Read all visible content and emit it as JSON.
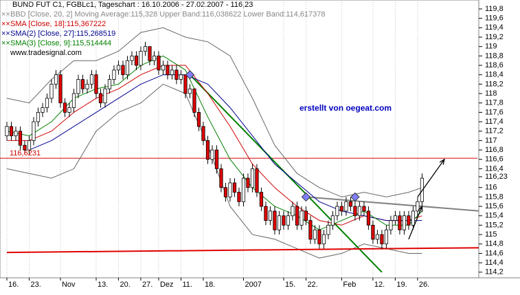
{
  "chart_data": {
    "type": "candlestick",
    "title": "BUND FUT C1, FGBLc1, Tageschart : 16.10.2006 - 27.02.2007 - 116,23",
    "legend": [
      "BBD [Close, 20, 2] Moving Average:115,328 Upper Band:116,038622 Lower Band:114,617378",
      "SMA [Close, 18]:115,367222",
      "SMA(2) [Close, 27]:115,268519",
      "SMA(3) [Close, 9]:115,514444"
    ],
    "legend_colors": [
      "#888888",
      "#d00000",
      "#000090",
      "#008000"
    ],
    "source": "www.tradesignal.com",
    "annotation": "erstellt von oegeat.com",
    "up_color": "#ffffff",
    "down_color": "#e00000",
    "xlim": [
      -1.54,
      105.4
    ],
    "ylim": [
      114.08,
      119.99
    ],
    "xticks": [
      {
        "value": 0,
        "label": "16."
      },
      {
        "value": 5,
        "label": "23."
      },
      {
        "value": 12,
        "label": "Nov"
      },
      {
        "value": 20,
        "label": "13."
      },
      {
        "value": 25,
        "label": "20."
      },
      {
        "value": 30,
        "label": "27."
      },
      {
        "value": 34,
        "label": "Dez"
      },
      {
        "value": 39,
        "label": "11."
      },
      {
        "value": 44,
        "label": "18."
      },
      {
        "value": 53,
        "label": "2007"
      },
      {
        "value": 62,
        "label": "15."
      },
      {
        "value": 67,
        "label": "22."
      },
      {
        "value": 75,
        "label": "Feb"
      },
      {
        "value": 82,
        "label": "12."
      },
      {
        "value": 87,
        "label": "19."
      },
      {
        "value": 92,
        "label": "26."
      }
    ],
    "yticks": [
      {
        "value": 114.2,
        "label": "114,2"
      },
      {
        "value": 114.4,
        "label": "114,4"
      },
      {
        "value": 114.6,
        "label": "114,6"
      },
      {
        "value": 114.8,
        "label": "114,8"
      },
      {
        "value": 115,
        "label": "115"
      },
      {
        "value": 115.2,
        "label": "115,2"
      },
      {
        "value": 115.4,
        "label": "115,4"
      },
      {
        "value": 115.6,
        "label": "115,6"
      },
      {
        "value": 115.8,
        "label": "115,8"
      },
      {
        "value": 116,
        "label": "116"
      },
      {
        "value": 116.4,
        "label": "116,4"
      },
      {
        "value": 116.6,
        "label": "116,6"
      },
      {
        "value": 116.8,
        "label": "116,8"
      },
      {
        "value": 117,
        "label": "117"
      },
      {
        "value": 117.2,
        "label": "117,2"
      },
      {
        "value": 117.4,
        "label": "117,4"
      },
      {
        "value": 117.6,
        "label": "117,6"
      },
      {
        "value": 117.8,
        "label": "117,8"
      },
      {
        "value": 118,
        "label": "118"
      },
      {
        "value": 118.2,
        "label": "118,2"
      },
      {
        "value": 118.4,
        "label": "118,4"
      },
      {
        "value": 118.6,
        "label": "118,6"
      },
      {
        "value": 118.8,
        "label": "118,8"
      },
      {
        "value": 119,
        "label": "119"
      },
      {
        "value": 119.2,
        "label": "119,2"
      },
      {
        "value": 119.4,
        "label": "119,4"
      },
      {
        "value": 119.6,
        "label": "119,6"
      },
      {
        "value": 119.8,
        "label": "119,8"
      }
    ],
    "last_price": {
      "value": 116.23,
      "label": "116,23"
    },
    "candles": [
      [
        117.1,
        117.4,
        117.0,
        117.3
      ],
      [
        117.3,
        117.4,
        117.0,
        117.1
      ],
      [
        117.1,
        117.3,
        117.0,
        117.2
      ],
      [
        117.2,
        117.3,
        116.8,
        116.9
      ],
      [
        116.9,
        117.0,
        116.7,
        116.8
      ],
      [
        116.8,
        117.1,
        116.7,
        117.0
      ],
      [
        117.0,
        117.5,
        116.9,
        117.4
      ],
      [
        117.4,
        117.7,
        117.3,
        117.6
      ],
      [
        117.6,
        117.8,
        117.5,
        117.7
      ],
      [
        117.7,
        118.0,
        117.6,
        117.9
      ],
      [
        117.9,
        118.3,
        117.8,
        118.2
      ],
      [
        118.2,
        118.5,
        118.1,
        118.4
      ],
      [
        118.4,
        118.5,
        117.7,
        117.8
      ],
      [
        117.8,
        117.9,
        117.5,
        117.6
      ],
      [
        117.6,
        117.8,
        117.5,
        117.7
      ],
      [
        117.7,
        118.1,
        117.6,
        118.0
      ],
      [
        118.0,
        118.4,
        117.9,
        118.3
      ],
      [
        118.3,
        118.4,
        118.0,
        118.1
      ],
      [
        118.1,
        118.3,
        118.0,
        118.2
      ],
      [
        118.2,
        118.5,
        118.1,
        118.4
      ],
      [
        118.4,
        118.5,
        117.9,
        118.0
      ],
      [
        118.0,
        118.1,
        117.7,
        117.8
      ],
      [
        117.8,
        118.2,
        117.7,
        118.1
      ],
      [
        118.1,
        118.4,
        118.0,
        118.3
      ],
      [
        118.3,
        118.6,
        118.2,
        118.5
      ],
      [
        118.5,
        118.7,
        118.4,
        118.6
      ],
      [
        118.6,
        118.7,
        118.3,
        118.4
      ],
      [
        118.4,
        118.8,
        118.3,
        118.7
      ],
      [
        118.7,
        118.9,
        118.6,
        118.8
      ],
      [
        118.8,
        118.9,
        118.5,
        118.6
      ],
      [
        118.6,
        119.0,
        118.5,
        118.9
      ],
      [
        118.9,
        119.1,
        118.8,
        119.0
      ],
      [
        119.0,
        119.0,
        118.6,
        118.7
      ],
      [
        118.7,
        118.9,
        118.6,
        118.8
      ],
      [
        118.8,
        118.9,
        118.4,
        118.5
      ],
      [
        118.5,
        118.7,
        118.4,
        118.6
      ],
      [
        118.6,
        118.7,
        118.3,
        118.4
      ],
      [
        118.4,
        118.6,
        118.3,
        118.5
      ],
      [
        118.5,
        118.6,
        118.2,
        118.3
      ],
      [
        118.3,
        118.5,
        118.2,
        118.4
      ],
      [
        118.4,
        118.4,
        117.9,
        118.0
      ],
      [
        118.0,
        118.2,
        117.9,
        118.1
      ],
      [
        118.1,
        118.1,
        117.5,
        117.6
      ],
      [
        117.6,
        117.7,
        117.2,
        117.3
      ],
      [
        117.3,
        117.4,
        116.9,
        117.0
      ],
      [
        117.0,
        117.1,
        116.5,
        116.6
      ],
      [
        116.6,
        116.9,
        116.5,
        116.8
      ],
      [
        116.8,
        116.9,
        116.3,
        116.4
      ],
      [
        116.4,
        116.5,
        115.9,
        116.0
      ],
      [
        116.0,
        116.1,
        115.7,
        115.8
      ],
      [
        115.8,
        116.2,
        115.7,
        116.1
      ],
      [
        116.1,
        116.2,
        115.8,
        115.9
      ],
      [
        115.9,
        116.0,
        115.6,
        115.7
      ],
      [
        115.7,
        116.3,
        115.6,
        116.2
      ],
      [
        116.2,
        116.3,
        115.9,
        116.0
      ],
      [
        116.0,
        116.5,
        115.9,
        116.4
      ],
      [
        116.4,
        116.5,
        115.8,
        115.9
      ],
      [
        115.9,
        116.0,
        115.5,
        115.6
      ],
      [
        115.6,
        115.7,
        115.2,
        115.3
      ],
      [
        115.3,
        115.6,
        115.2,
        115.5
      ],
      [
        115.5,
        115.6,
        115.0,
        115.1
      ],
      [
        115.1,
        115.5,
        115.0,
        115.4
      ],
      [
        115.4,
        115.5,
        115.1,
        115.2
      ],
      [
        115.2,
        115.5,
        115.1,
        115.4
      ],
      [
        115.4,
        115.7,
        115.3,
        115.6
      ],
      [
        115.6,
        115.7,
        115.1,
        115.2
      ],
      [
        115.2,
        115.6,
        115.1,
        115.5
      ],
      [
        115.5,
        115.6,
        115.2,
        115.3
      ],
      [
        115.3,
        115.4,
        114.8,
        114.9
      ],
      [
        114.9,
        115.2,
        114.8,
        115.1
      ],
      [
        115.1,
        115.2,
        114.7,
        114.8
      ],
      [
        114.8,
        115.1,
        114.7,
        115.0
      ],
      [
        115.0,
        115.3,
        114.9,
        115.2
      ],
      [
        115.2,
        115.5,
        115.1,
        115.4
      ],
      [
        115.4,
        115.7,
        115.3,
        115.6
      ],
      [
        115.6,
        115.7,
        115.4,
        115.5
      ],
      [
        115.5,
        115.8,
        115.4,
        115.7
      ],
      [
        115.7,
        115.8,
        115.5,
        115.6
      ],
      [
        115.6,
        115.7,
        115.3,
        115.4
      ],
      [
        115.4,
        115.7,
        115.3,
        115.6
      ],
      [
        115.6,
        115.7,
        115.4,
        115.5
      ],
      [
        115.5,
        115.6,
        115.1,
        115.2
      ],
      [
        115.2,
        115.3,
        114.8,
        114.9
      ],
      [
        114.9,
        115.1,
        114.8,
        115.0
      ],
      [
        115.0,
        115.1,
        114.7,
        114.8
      ],
      [
        114.8,
        115.2,
        114.7,
        115.1
      ],
      [
        115.1,
        115.4,
        115.0,
        115.3
      ],
      [
        115.3,
        115.5,
        115.2,
        115.4
      ],
      [
        115.4,
        115.5,
        115.0,
        115.1
      ],
      [
        115.1,
        115.5,
        115.0,
        115.4
      ],
      [
        115.4,
        115.5,
        115.1,
        115.2
      ],
      [
        115.2,
        115.6,
        115.1,
        115.5
      ],
      [
        115.5,
        115.8,
        115.4,
        115.7
      ],
      [
        115.7,
        116.3,
        115.6,
        116.2
      ]
    ],
    "bands": {
      "color": "#666666",
      "x": [
        0,
        5,
        10,
        15,
        20,
        25,
        30,
        35,
        40,
        45,
        50,
        55,
        60,
        65,
        70,
        75,
        80,
        85,
        90,
        93
      ],
      "upper": [
        117.9,
        117.8,
        118.3,
        118.7,
        118.7,
        118.9,
        119.3,
        119.4,
        119.2,
        119.1,
        118.8,
        117.9,
        116.9,
        116.3,
        116.0,
        115.8,
        115.9,
        115.8,
        115.9,
        116.0
      ],
      "lower": [
        116.4,
        116.3,
        116.2,
        116.4,
        117.2,
        117.6,
        117.8,
        118.2,
        118.0,
        116.9,
        115.6,
        115.0,
        114.9,
        114.7,
        114.5,
        114.6,
        114.8,
        114.7,
        114.6,
        114.6
      ]
    },
    "series": [
      {
        "color": "#d00000",
        "x": [
          0,
          5,
          10,
          15,
          20,
          25,
          30,
          35,
          40,
          45,
          50,
          55,
          60,
          65,
          70,
          75,
          80,
          85,
          90,
          93
        ],
        "values": [
          117.0,
          117.0,
          117.2,
          117.6,
          117.9,
          118.1,
          118.4,
          118.6,
          118.6,
          118.0,
          117.3,
          116.5,
          116.0,
          115.6,
          115.3,
          115.2,
          115.4,
          115.3,
          115.3,
          115.4
        ]
      },
      {
        "color": "#000090",
        "x": [
          5,
          10,
          15,
          20,
          25,
          30,
          35,
          40,
          45,
          50,
          55,
          60,
          65,
          70,
          75,
          80,
          85,
          90,
          93
        ],
        "values": [
          116.8,
          117.0,
          117.3,
          117.6,
          117.9,
          118.2,
          118.4,
          118.4,
          118.2,
          117.7,
          117.1,
          116.5,
          116.1,
          115.7,
          115.5,
          115.4,
          115.3,
          115.3,
          115.3
        ]
      },
      {
        "color": "#008000",
        "x": [
          0,
          5,
          10,
          15,
          20,
          25,
          30,
          35,
          40,
          45,
          50,
          55,
          60,
          65,
          70,
          75,
          80,
          85,
          90,
          93
        ],
        "values": [
          117.2,
          117.1,
          117.4,
          117.9,
          118.1,
          118.2,
          118.6,
          118.8,
          118.5,
          117.5,
          116.6,
          116.0,
          115.6,
          115.4,
          115.1,
          115.3,
          115.5,
          115.2,
          115.2,
          115.5
        ]
      }
    ],
    "level": {
      "value": 116.6231,
      "label": "116,6231",
      "color": "#d00000"
    },
    "trendlines": [
      {
        "color": "#008000",
        "x": [
          41,
          84
        ],
        "values": [
          118.4,
          114.2
        ]
      },
      {
        "color": "#808080",
        "x": [
          67,
          106
        ],
        "values": [
          115.8,
          115.5
        ]
      },
      {
        "color": "#e00000",
        "x": [
          0,
          106
        ],
        "values": [
          114.62,
          114.72
        ]
      }
    ],
    "markers": {
      "color": "#8080ff",
      "x": [
        41,
        67,
        78
      ],
      "values": [
        118.4,
        115.8,
        115.8
      ]
    },
    "arrows": [
      {
        "x": [
          92,
          98
        ],
        "values": [
          115.8,
          116.6
        ]
      },
      {
        "x": [
          90,
          93
        ],
        "values": [
          114.9,
          115.6
        ]
      }
    ]
  }
}
